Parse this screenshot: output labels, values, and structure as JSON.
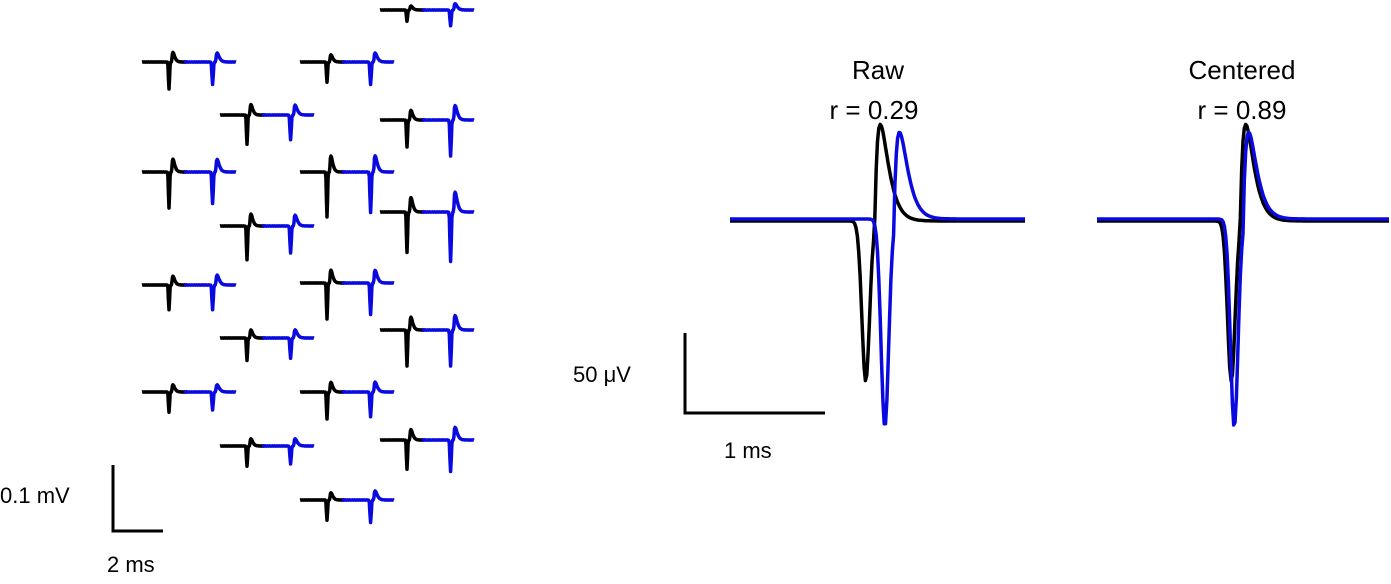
{
  "colors": {
    "trace_a": "#000000",
    "trace_b": "#0a0ae0",
    "text": "#000000"
  },
  "left_panel": {
    "scale_bar": {
      "vertical_label": "0.1 mV",
      "horizontal_label": "2 ms"
    }
  },
  "panel_raw": {
    "title": "Raw",
    "correlation": "r = 0.29"
  },
  "panel_centered": {
    "title": "Centered",
    "correlation": "r = 0.89"
  },
  "right_scale_bar": {
    "vertical_label": "50 μV",
    "horizontal_label": "1 ms"
  }
}
